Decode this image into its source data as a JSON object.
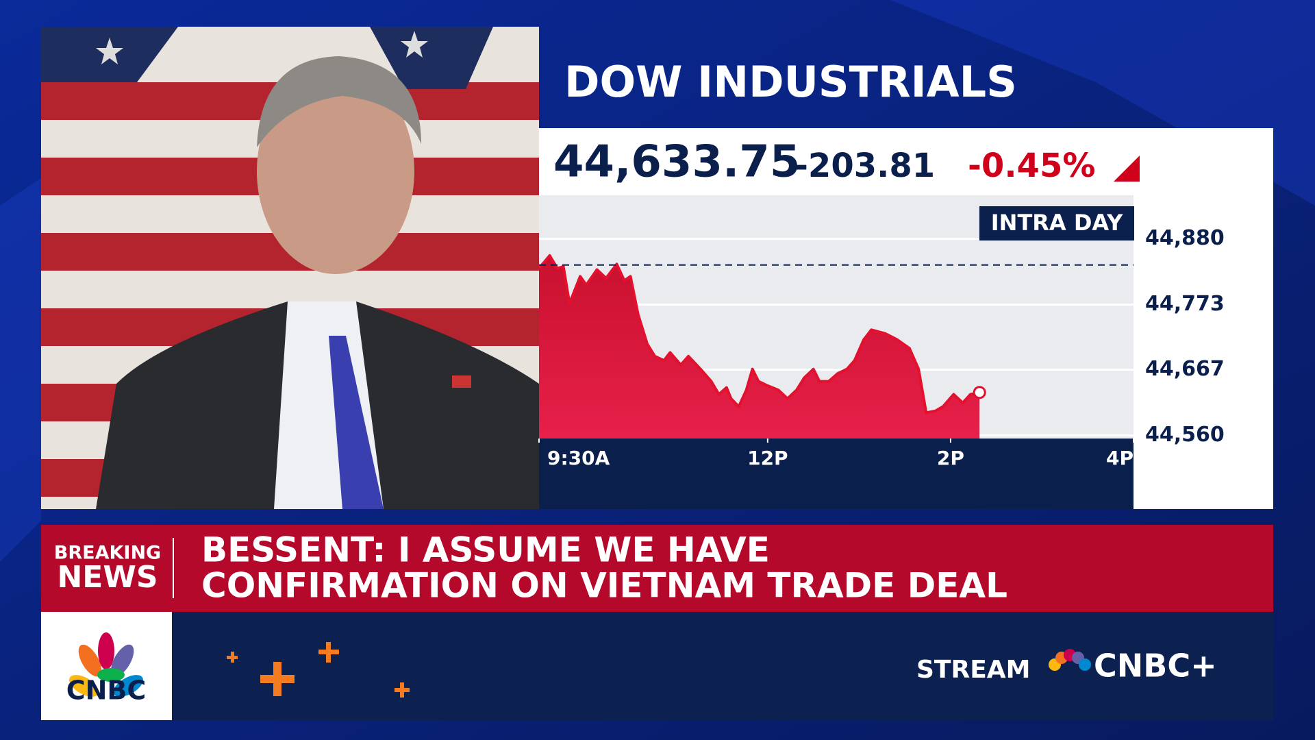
{
  "header": {
    "title": "DOW INDUSTRIALS",
    "last": "44,633.75",
    "change": "-203.81",
    "percent_change": "-0.45%",
    "badge": "INTRA DAY"
  },
  "chart_data": {
    "type": "area",
    "x": [
      0,
      7,
      12,
      16,
      20,
      27,
      31,
      38,
      44,
      51,
      56,
      60,
      65,
      71,
      76,
      82,
      86,
      93,
      98,
      106,
      113,
      118,
      123,
      126,
      131,
      136,
      140,
      144,
      150,
      157,
      163,
      169,
      174,
      180,
      184,
      190,
      196,
      202,
      207,
      213,
      218,
      227,
      235,
      243,
      249,
      254,
      260,
      265,
      272,
      278,
      283,
      289
    ],
    "values": [
      44832,
      44853,
      44832,
      44835,
      44775,
      44819,
      44805,
      44830,
      44816,
      44839,
      44812,
      44819,
      44757,
      44709,
      44689,
      44682,
      44695,
      44675,
      44689,
      44668,
      44648,
      44627,
      44638,
      44620,
      44607,
      44634,
      44668,
      44648,
      44641,
      44634,
      44620,
      44634,
      44654,
      44668,
      44648,
      44648,
      44661,
      44668,
      44682,
      44716,
      44732,
      44726,
      44716,
      44702,
      44668,
      44597,
      44600,
      44607,
      44627,
      44613,
      44627,
      44630
    ],
    "color": "#e3102e",
    "reference_line": 44837.56,
    "xlim": [
      0,
      390
    ],
    "xticks": [
      {
        "value": 0,
        "label": "9:30A"
      },
      {
        "value": 150,
        "label": "12P"
      },
      {
        "value": 270,
        "label": "2P"
      },
      {
        "value": 390,
        "label": "4P"
      }
    ],
    "ylim": [
      44555,
      44951
    ],
    "yticks": [
      {
        "value": 44560,
        "label": "44,560"
      },
      {
        "value": 44667,
        "label": "44,667"
      },
      {
        "value": 44773,
        "label": "44,773"
      },
      {
        "value": 44880,
        "label": "44,880"
      }
    ],
    "grid": true
  },
  "banner": {
    "label": [
      "BREAKING",
      "NEWS"
    ],
    "headline": [
      "BESSENT: I ASSUME WE HAVE",
      "CONFIRMATION ON VIETNAM TRADE DEAL"
    ]
  },
  "footer": {
    "logo": "CNBC",
    "stream": "STREAM",
    "brand": "CNBC+"
  }
}
